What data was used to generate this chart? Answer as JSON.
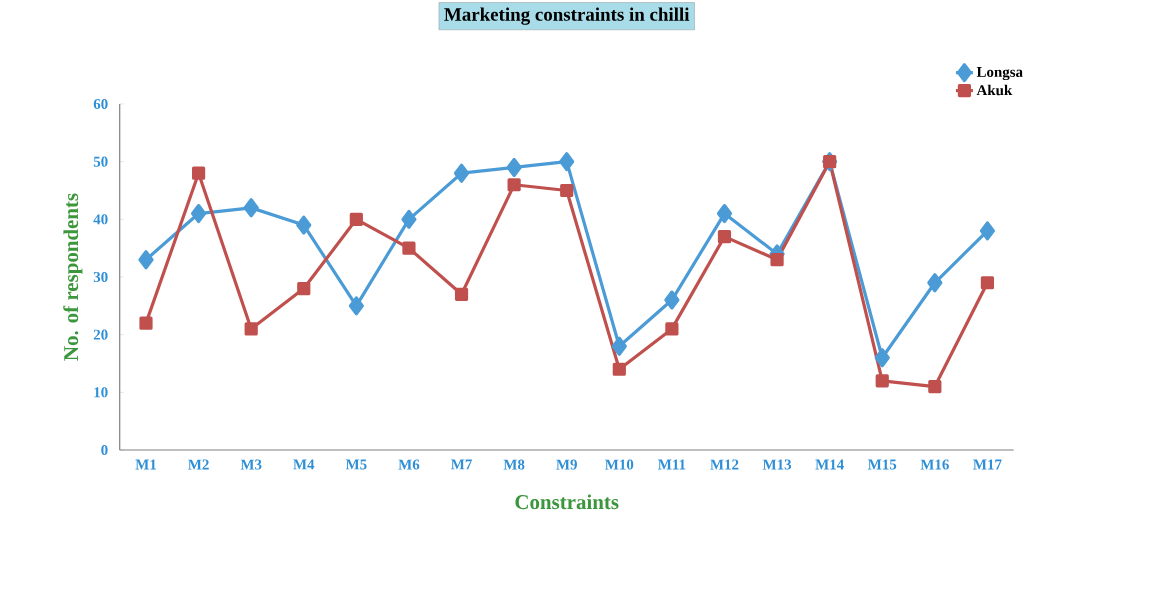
{
  "chart_data": {
    "type": "line",
    "title": "Marketing constraints in chilli",
    "xlabel": "Constraints",
    "ylabel": "No. of respondents",
    "categories": [
      "M1",
      "M2",
      "M3",
      "M4",
      "M5",
      "M6",
      "M7",
      "M8",
      "M9",
      "M10",
      "M11",
      "M12",
      "M13",
      "M14",
      "M15",
      "M16",
      "M17"
    ],
    "series": [
      {
        "name": "Longsa",
        "color": "#4a9bd6",
        "marker": "diamond",
        "values": [
          33,
          41,
          42,
          39,
          25,
          40,
          48,
          49,
          50,
          18,
          26,
          41,
          34,
          50,
          16,
          29,
          38
        ]
      },
      {
        "name": "Akuk",
        "color": "#c0504d",
        "marker": "square",
        "values": [
          22,
          48,
          21,
          28,
          40,
          35,
          27,
          46,
          45,
          14,
          21,
          37,
          33,
          50,
          12,
          11,
          29
        ]
      }
    ],
    "ylim": [
      0,
      60
    ],
    "yticks": [
      0,
      10,
      20,
      30,
      40,
      50,
      60
    ],
    "grid": false,
    "legend": "top right"
  }
}
